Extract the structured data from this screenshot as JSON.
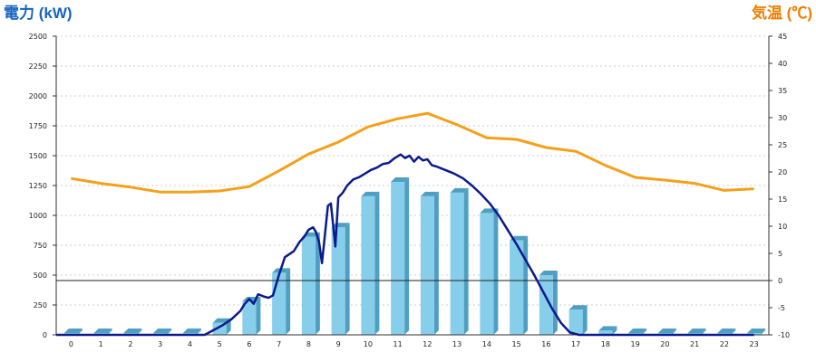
{
  "chart_data": {
    "type": "bar",
    "y_left_label": "電力 (kW)",
    "y_right_label": "気温 (℃)",
    "categories": [
      "0",
      "1",
      "2",
      "3",
      "4",
      "5",
      "6",
      "7",
      "8",
      "9",
      "10",
      "11",
      "12",
      "13",
      "14",
      "15",
      "16",
      "17",
      "18",
      "19",
      "20",
      "21",
      "22",
      "23"
    ],
    "y_left_ticks": [
      "0",
      "250",
      "500",
      "750",
      "1000",
      "1250",
      "1500",
      "1750",
      "2000",
      "2250",
      "2500"
    ],
    "y_right_ticks": [
      "-10",
      "-5",
      "0",
      "5",
      "10",
      "15",
      "20",
      "25",
      "30",
      "35",
      "40",
      "45"
    ],
    "y_left_range": [
      0,
      2500
    ],
    "y_right_range": [
      -10,
      45
    ],
    "grid": "horizontal dotted",
    "colors": {
      "bars": "#87ceeb",
      "bar_shade": "#4f9fc2",
      "power_line": "#0b1a8c",
      "temperature_line": "#f5a01a",
      "left_title": "#1565c0",
      "right_title": "#ef7d00"
    },
    "series": [
      {
        "kind": "bar",
        "axis": "left",
        "values": [
          15,
          15,
          15,
          15,
          15,
          100,
          280,
          520,
          820,
          900,
          1160,
          1280,
          1160,
          1190,
          1020,
          790,
          500,
          210,
          35,
          15,
          15,
          15,
          15,
          15
        ]
      },
      {
        "kind": "line",
        "axis": "left",
        "x": [
          4.5,
          4.8,
          5.1,
          5.4,
          5.7,
          5.85,
          6.0,
          6.15,
          6.3,
          6.5,
          6.65,
          6.8,
          7.0,
          7.2,
          7.5,
          7.7,
          7.85,
          8.0,
          8.15,
          8.25,
          8.35,
          8.45,
          8.55,
          8.65,
          8.75,
          8.9,
          9.0,
          9.15,
          9.3,
          9.5,
          9.7,
          9.9,
          10.1,
          10.3,
          10.5,
          10.7,
          10.9,
          11.1,
          11.25,
          11.4,
          11.55,
          11.7,
          11.85,
          12.0,
          12.15,
          12.3,
          12.6,
          12.9,
          13.2,
          13.5,
          13.8,
          14.1,
          14.4,
          14.7,
          15.0,
          15.3,
          15.6,
          15.9,
          16.2,
          16.5,
          16.8,
          17.1,
          17.4,
          17.7,
          17.9
        ],
        "values": [
          0,
          40,
          80,
          130,
          200,
          260,
          300,
          260,
          340,
          320,
          310,
          330,
          500,
          650,
          700,
          780,
          820,
          880,
          900,
          860,
          780,
          600,
          840,
          1080,
          1100,
          740,
          1150,
          1190,
          1250,
          1300,
          1320,
          1350,
          1380,
          1400,
          1430,
          1440,
          1480,
          1510,
          1480,
          1500,
          1450,
          1490,
          1460,
          1470,
          1420,
          1410,
          1380,
          1350,
          1310,
          1250,
          1180,
          1100,
          1000,
          880,
          760,
          630,
          500,
          360,
          220,
          100,
          20,
          -30,
          -60,
          -80,
          -95
        ],
        "clip_below": 0
      },
      {
        "kind": "line",
        "axis": "right",
        "x": [
          0,
          1,
          2,
          3,
          4,
          5,
          6,
          7,
          8,
          9,
          10,
          11,
          12,
          13,
          14,
          15,
          16,
          17,
          18,
          19,
          20,
          21,
          22,
          23
        ],
        "values": [
          18.8,
          17.9,
          17.2,
          16.3,
          16.3,
          16.5,
          17.3,
          20.2,
          23.3,
          25.5,
          28.3,
          29.8,
          30.8,
          28.7,
          26.3,
          26.0,
          24.5,
          23.8,
          21.2,
          19.0,
          18.5,
          17.9,
          16.6,
          16.9
        ]
      }
    ]
  }
}
